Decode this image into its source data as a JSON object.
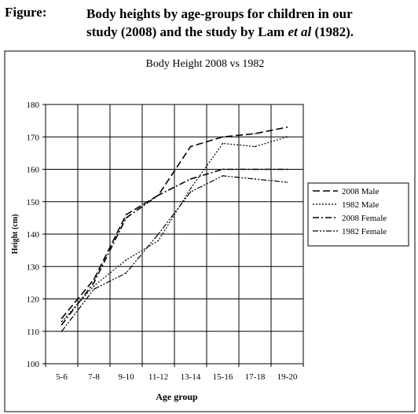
{
  "figure": {
    "label": "Figure:",
    "caption_line1": "Body heights by age-groups for children in our",
    "caption_line2_pre": "study (2008) and the study by Lam ",
    "caption_line2_italic": "et al",
    "caption_line2_post": " (1982)."
  },
  "chart_data": {
    "type": "line",
    "title": "Body Height 2008 vs 1982",
    "xlabel": "Age group",
    "ylabel": "Height (cm)",
    "categories": [
      "5-6",
      "7-8",
      "9-10",
      "11-12",
      "13-14",
      "15-16",
      "17-18",
      "19-20"
    ],
    "ylim": [
      100,
      180
    ],
    "yticks": [
      100,
      110,
      120,
      130,
      140,
      150,
      160,
      170,
      180
    ],
    "grid": true,
    "legend_position": "right",
    "series": [
      {
        "name": "2008 Male",
        "style": "long-dash",
        "values": [
          114,
          126,
          146,
          152,
          167,
          170,
          171,
          173
        ]
      },
      {
        "name": "1982 Male",
        "style": "dotted",
        "values": [
          113,
          124,
          132,
          138,
          154,
          168,
          167,
          170
        ]
      },
      {
        "name": "2008 Female",
        "style": "dash-dot",
        "values": [
          112,
          125,
          145,
          152,
          157,
          160,
          160,
          160
        ]
      },
      {
        "name": "1982 Female",
        "style": "dash-dot-dot",
        "values": [
          110,
          123,
          128,
          140,
          153,
          158,
          157,
          156
        ]
      }
    ]
  }
}
